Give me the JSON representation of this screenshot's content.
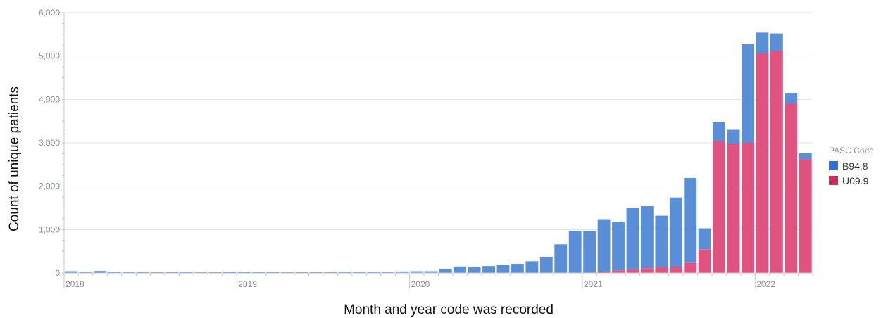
{
  "chart_data": {
    "type": "bar",
    "stacked": true,
    "xlabel": "Month and year code was recorded",
    "ylabel": "Count of unique patients",
    "ylim": [
      0,
      6000
    ],
    "yticks": [
      0,
      1000,
      2000,
      3000,
      4000,
      5000,
      6000
    ],
    "ytick_labels": [
      "0",
      "1,000",
      "2,000",
      "3,000",
      "4,000",
      "5,000",
      "6,000"
    ],
    "year_ticks": [
      {
        "label": "2018",
        "index": 0
      },
      {
        "label": "2019",
        "index": 12
      },
      {
        "label": "2020",
        "index": 24
      },
      {
        "label": "2021",
        "index": 36
      },
      {
        "label": "2022",
        "index": 48
      }
    ],
    "grid": true,
    "legend": {
      "title": "PASC Code",
      "position": "right"
    },
    "categories": [
      "2018-01",
      "2018-02",
      "2018-03",
      "2018-04",
      "2018-05",
      "2018-06",
      "2018-07",
      "2018-08",
      "2018-09",
      "2018-10",
      "2018-11",
      "2018-12",
      "2019-01",
      "2019-02",
      "2019-03",
      "2019-04",
      "2019-05",
      "2019-06",
      "2019-07",
      "2019-08",
      "2019-09",
      "2019-10",
      "2019-11",
      "2019-12",
      "2020-01",
      "2020-02",
      "2020-03",
      "2020-04",
      "2020-05",
      "2020-06",
      "2020-07",
      "2020-08",
      "2020-09",
      "2020-10",
      "2020-11",
      "2020-12",
      "2021-01",
      "2021-02",
      "2021-03",
      "2021-04",
      "2021-05",
      "2021-06",
      "2021-07",
      "2021-08",
      "2021-09",
      "2021-10",
      "2021-11",
      "2021-12",
      "2022-01",
      "2022-02",
      "2022-03",
      "2022-04"
    ],
    "series": [
      {
        "name": "U09.9",
        "color": "#e0527f",
        "values": [
          0,
          0,
          0,
          0,
          0,
          0,
          0,
          0,
          0,
          0,
          0,
          0,
          0,
          0,
          0,
          0,
          0,
          0,
          0,
          0,
          0,
          0,
          0,
          0,
          0,
          0,
          0,
          0,
          0,
          0,
          0,
          0,
          0,
          0,
          0,
          0,
          0,
          30,
          60,
          80,
          110,
          130,
          140,
          230,
          540,
          3040,
          2980,
          3000,
          5060,
          5120,
          3900,
          2620
        ]
      },
      {
        "name": "B94.8",
        "color": "#5a8fd8",
        "values": [
          40,
          25,
          45,
          20,
          25,
          20,
          20,
          20,
          30,
          15,
          20,
          30,
          20,
          25,
          25,
          15,
          20,
          20,
          20,
          25,
          20,
          30,
          25,
          35,
          40,
          40,
          90,
          150,
          140,
          160,
          190,
          210,
          270,
          370,
          660,
          970,
          970,
          1210,
          1120,
          1420,
          1430,
          1190,
          1600,
          1960,
          490,
          430,
          320,
          2270,
          480,
          400,
          250,
          140
        ]
      }
    ]
  }
}
